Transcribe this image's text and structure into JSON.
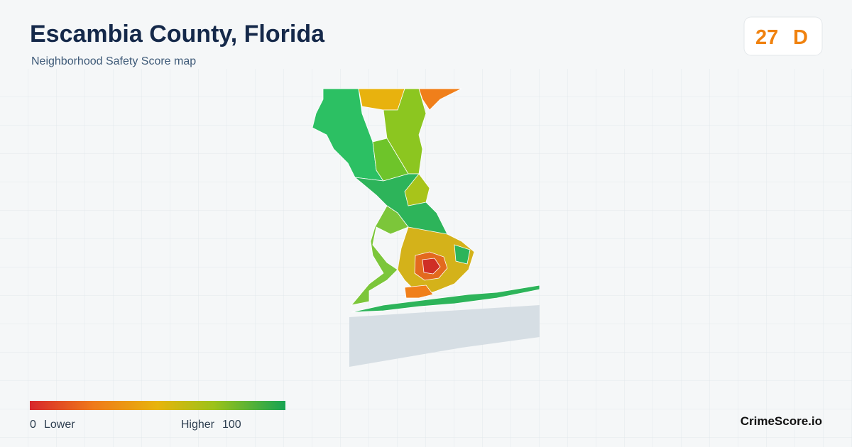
{
  "header": {
    "title": "Escambia County, Florida",
    "subtitle": "Neighborhood Safety Score map"
  },
  "score": {
    "value": 27,
    "grade": "D"
  },
  "legend": {
    "min": 0,
    "min_label": "Lower",
    "max_label": "Higher",
    "max": 100
  },
  "footer": {
    "brand": "CrimeScore.io"
  }
}
